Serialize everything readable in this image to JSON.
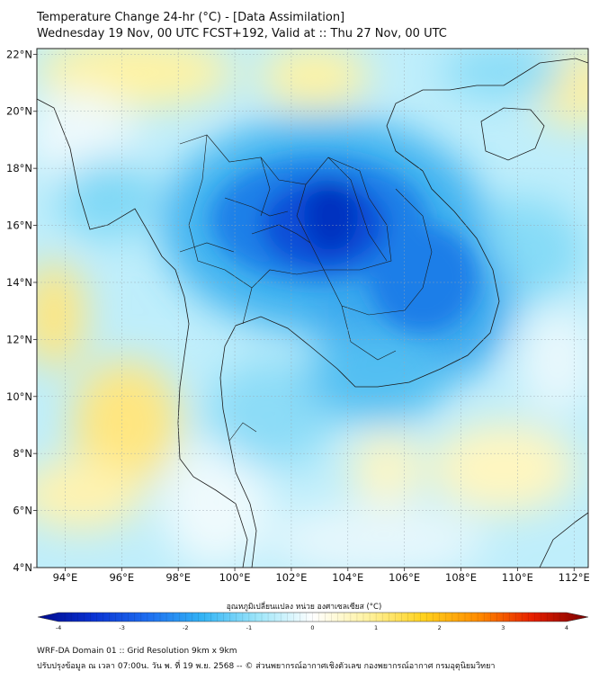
{
  "header": {
    "title": "Temperature Change 24-hr (°C) - [Data Assimilation]",
    "subtitle": "Wednesday 19 Nov, 00 UTC FCST+192, Valid at :: Thu 27 Nov, 00 UTC"
  },
  "map": {
    "lon_range": [
      93,
      112.5
    ],
    "lat_range": [
      4,
      22.2
    ],
    "lon_ticks": [
      "94°E",
      "96°E",
      "98°E",
      "100°E",
      "102°E",
      "104°E",
      "106°E",
      "108°E",
      "110°E",
      "112°E"
    ],
    "lat_ticks": [
      "22°N",
      "20°N",
      "18°N",
      "16°N",
      "14°N",
      "12°N",
      "10°N",
      "8°N",
      "6°N",
      "4°N"
    ],
    "field": {
      "variable": "24-hr temperature change",
      "cooling_center": [
        103,
        16.3
      ],
      "cooling_min": -3.5,
      "warm_spots": [
        [
          93.6,
          12.9,
          1.2
        ],
        [
          97.5,
          8.5,
          1.0
        ],
        [
          99.5,
          21.5,
          0.8
        ],
        [
          111.5,
          20.5,
          0.8
        ]
      ]
    }
  },
  "colorbar": {
    "label": "อุณหภูมิเปลี่ยนแปลง หน่วย องศาเซลเซียส (°C)",
    "range": [
      -4,
      4
    ],
    "ticks": [
      "-4",
      "-3",
      "-2",
      "-1",
      "0",
      "1",
      "2",
      "3",
      "4"
    ],
    "colors": [
      "#000a8c",
      "#0a32d2",
      "#1e6ef0",
      "#33b4f5",
      "#9ee6fa",
      "#ffffff",
      "#fff2a0",
      "#ffd21e",
      "#ff8c00",
      "#e61e00",
      "#780000"
    ]
  },
  "footer": {
    "line1": "WRF-DA Domain 01 :: Grid Resolution 9km x 9km",
    "line2": "ปรับปรุงข้อมูล ณ เวลา 07:00น. วัน พ. ที่ 19 พ.ย. 2568 -- © ส่วนพยากรณ์อากาศเชิงตัวเลข กองพยากรณ์อากาศ กรมอุตุนิยมวิทยา"
  }
}
